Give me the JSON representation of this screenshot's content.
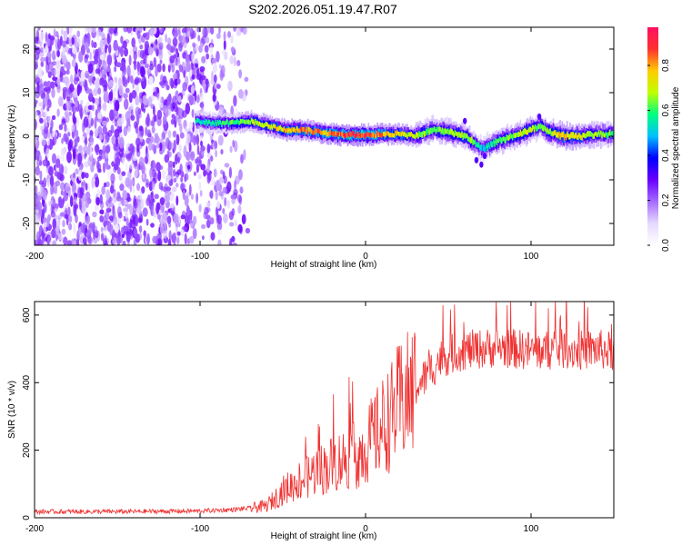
{
  "figure_title": "S202.2026.051.19.47.R07",
  "chart_data": [
    {
      "type": "heatmap",
      "title": "S202.2026.051.19.47.R07",
      "xlabel": "Height of straight line (km)",
      "ylabel": "Frequency (Hz)",
      "xlim": [
        -200,
        150
      ],
      "ylim": [
        -25,
        25
      ],
      "xticks": [
        -200,
        -100,
        0,
        100
      ],
      "yticks": [
        -20,
        -10,
        0,
        10,
        20
      ],
      "colorbar": {
        "label": "Normalized spectral amplitude",
        "range": [
          0.0,
          0.97
        ],
        "ticks": [
          0.0,
          0.2,
          0.4,
          0.6,
          0.8
        ],
        "tick_labels": [
          "0.0",
          "0.2",
          "0.4",
          "0.6",
          "0.8"
        ],
        "colors": [
          "#ffffff",
          "#e6d9ff",
          "#a66bff",
          "#6a00ff",
          "#0000ff",
          "#00c0ff",
          "#00ff80",
          "#c0ff00",
          "#ffcc00",
          "#ff3030",
          "#ff1060"
        ]
      },
      "noise_region": {
        "x_from": -200,
        "x_to": -70,
        "max_amplitude": 0.15
      },
      "signal_ridge": {
        "x": [
          -103,
          -90,
          -80,
          -70,
          -60,
          -50,
          -40,
          -30,
          -20,
          -10,
          0,
          10,
          20,
          30,
          40,
          50,
          60,
          65,
          70,
          80,
          90,
          100,
          105,
          110,
          120,
          130,
          140,
          150
        ],
        "frequency_hz": [
          3.5,
          3.0,
          3.0,
          3.5,
          2.5,
          1.5,
          1.5,
          1.0,
          0.5,
          0.3,
          0.3,
          0.5,
          0.5,
          0.0,
          1.5,
          1.0,
          0.0,
          -1.5,
          -3.0,
          -1.0,
          0.0,
          1.5,
          2.5,
          1.0,
          0.0,
          0.0,
          0.5,
          0.5
        ],
        "peak_amplitude": [
          0.55,
          0.6,
          0.65,
          0.7,
          0.75,
          0.8,
          0.85,
          0.85,
          0.9,
          0.95,
          0.95,
          0.85,
          0.8,
          0.7,
          0.65,
          0.7,
          0.7,
          0.65,
          0.5,
          0.65,
          0.7,
          0.75,
          0.6,
          0.7,
          0.8,
          0.75,
          0.7,
          0.65
        ]
      }
    },
    {
      "type": "line",
      "xlabel": "Height of straight line (km)",
      "ylabel": "SNR (10 * v/v)",
      "xlim": [
        -200,
        150
      ],
      "ylim": [
        0,
        640
      ],
      "xticks": [
        -200,
        -100,
        0,
        100
      ],
      "yticks": [
        0,
        200,
        400,
        600
      ],
      "series": [
        {
          "name": "SNR",
          "color": "#f03030",
          "x": [
            -200,
            -150,
            -100,
            -80,
            -70,
            -60,
            -55,
            -50,
            -45,
            -40,
            -35,
            -30,
            -25,
            -20,
            -15,
            -10,
            -5,
            0,
            5,
            10,
            15,
            20,
            25,
            30,
            35,
            40,
            45,
            50,
            55,
            60,
            70,
            80,
            90,
            100,
            110,
            120,
            130,
            140,
            150
          ],
          "values": [
            18,
            18,
            20,
            24,
            28,
            35,
            55,
            80,
            95,
            110,
            120,
            140,
            145,
            160,
            170,
            180,
            185,
            210,
            240,
            270,
            295,
            335,
            355,
            385,
            410,
            440,
            470,
            480,
            490,
            495,
            500,
            505,
            500,
            495,
            495,
            500,
            495,
            500,
            490
          ]
        }
      ]
    }
  ]
}
